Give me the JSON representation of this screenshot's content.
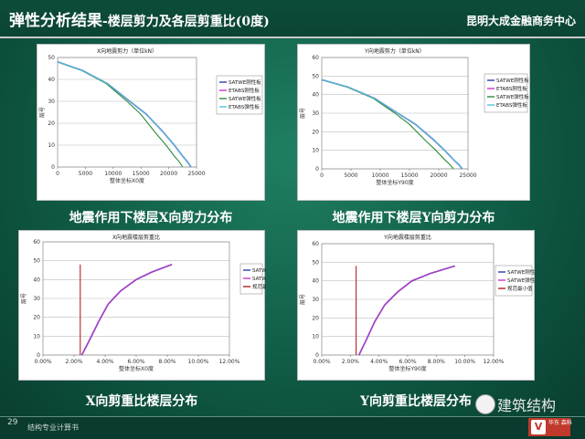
{
  "header": {
    "title": "弹性分析结果",
    "subtitle": "-楼层剪力及各层剪重比(0度)",
    "company": "昆明大成金融商务中心"
  },
  "captions": {
    "top_left": "地震作用下楼层X向剪力分布",
    "top_right": "地震作用下楼层Y向剪力分布",
    "bottom_left": "X向剪重比楼层分布",
    "bottom_right": "Y向剪重比楼层分布"
  },
  "footer": {
    "page": "29",
    "text": "结构专业计算书"
  },
  "watermark": {
    "text": "建筑结构",
    "logo_text": "华东 森科"
  },
  "colors": {
    "satwe_rigid": "#2b3bb0",
    "etabs_rigid": "#cc33cc",
    "satwe_elastic": "#2e8b3a",
    "etabs_elastic": "#4fc6e0",
    "limit": "#b22222"
  },
  "chart_data": [
    {
      "type": "line",
      "title": "X向地震剪力（单位kN）",
      "xlabel": "整体坐标X0度",
      "ylabel": "层号",
      "xlim": [
        0,
        25000
      ],
      "ylim": [
        0,
        50
      ],
      "xticks": [
        0,
        5000,
        10000,
        15000,
        20000,
        25000
      ],
      "yticks": [
        0,
        10,
        20,
        30,
        40,
        50
      ],
      "legend_position": "right",
      "series": [
        {
          "name": "SATWE刚性板",
          "color": "#2b3bb0",
          "x": [
            0,
            4500,
            9000,
            13000,
            16000,
            19000,
            21000,
            22500,
            23500,
            24000
          ],
          "y": [
            48,
            44,
            38,
            30,
            24,
            16,
            10,
            5,
            2,
            0
          ]
        },
        {
          "name": "ETABS刚性板",
          "color": "#cc33cc",
          "x": [
            0,
            4500,
            9000,
            13000,
            16000,
            19000,
            21000,
            22500,
            23500,
            24000
          ],
          "y": [
            48,
            44,
            38,
            30,
            24,
            16,
            10,
            5,
            2,
            0
          ]
        },
        {
          "name": "SATWE弹性板",
          "color": "#2e8b3a",
          "x": [
            0,
            4400,
            8800,
            12500,
            15000,
            17500,
            19500,
            21000,
            22000,
            22500
          ],
          "y": [
            48,
            44,
            38,
            30,
            24,
            16,
            10,
            5,
            2,
            0
          ]
        },
        {
          "name": "ETABS弹性板",
          "color": "#4fc6e0",
          "x": [
            0,
            4500,
            9000,
            13000,
            16000,
            19000,
            21000,
            22500,
            23500,
            24000
          ],
          "y": [
            48,
            44,
            38,
            30,
            24,
            16,
            10,
            5,
            2,
            0
          ]
        }
      ]
    },
    {
      "type": "line",
      "title": "Y向地震剪力（单位kN）",
      "xlabel": "整体坐标Y90度",
      "ylabel": "层号",
      "xlim": [
        0,
        25000
      ],
      "ylim": [
        0,
        60
      ],
      "xticks": [
        0,
        5000,
        10000,
        15000,
        20000,
        25000
      ],
      "yticks": [
        0,
        10,
        20,
        30,
        40,
        50,
        60
      ],
      "legend_position": "right",
      "series": [
        {
          "name": "SATWE刚性板",
          "color": "#2b3bb0",
          "x": [
            0,
            4500,
            9000,
            13000,
            16000,
            19000,
            21000,
            22500,
            23500,
            24000
          ],
          "y": [
            48,
            44,
            38,
            30,
            24,
            16,
            10,
            5,
            2,
            0
          ]
        },
        {
          "name": "ETABS刚性板",
          "color": "#cc33cc",
          "x": [
            0,
            4500,
            9000,
            13000,
            16000,
            19000,
            21000,
            22500,
            23500,
            24000
          ],
          "y": [
            48,
            44,
            38,
            30,
            24,
            16,
            10,
            5,
            2,
            0
          ]
        },
        {
          "name": "SATWE弹性板",
          "color": "#2e8b3a",
          "x": [
            0,
            4400,
            8800,
            12500,
            15000,
            17500,
            19500,
            21000,
            22000,
            22500
          ],
          "y": [
            48,
            44,
            38,
            30,
            24,
            16,
            10,
            5,
            2,
            0
          ]
        },
        {
          "name": "ETABS弹性板",
          "color": "#4fc6e0",
          "x": [
            0,
            4500,
            9000,
            13000,
            16000,
            19000,
            21000,
            22500,
            23500,
            24000
          ],
          "y": [
            48,
            44,
            38,
            30,
            24,
            16,
            10,
            5,
            2,
            0
          ]
        }
      ]
    },
    {
      "type": "line",
      "title": "X向地震楼层剪重比",
      "xlabel": "整体坐标X0度",
      "ylabel": "层号",
      "xlim": [
        0,
        12
      ],
      "ylim": [
        0,
        60
      ],
      "xticks": [
        0,
        2,
        4,
        6,
        8,
        10,
        12
      ],
      "xtick_labels": [
        "0.00%",
        "2.00%",
        "4.00%",
        "6.00%",
        "8.00%",
        "10.00%",
        "12.00%"
      ],
      "yticks": [
        0,
        10,
        20,
        30,
        40,
        50,
        60
      ],
      "legend_position": "right",
      "series": [
        {
          "name": "SATWE刚性板",
          "color": "#2b3bb0",
          "x": [
            2.5,
            3.0,
            3.6,
            4.2,
            5.0,
            6.0,
            7.0,
            8.3
          ],
          "y": [
            0,
            8,
            18,
            27,
            34,
            40,
            44,
            48
          ]
        },
        {
          "name": "SATWE弹性板",
          "color": "#cc33cc",
          "x": [
            2.5,
            3.0,
            3.6,
            4.2,
            5.0,
            6.0,
            7.0,
            8.3
          ],
          "y": [
            0,
            8,
            18,
            27,
            34,
            40,
            44,
            48
          ]
        },
        {
          "name": "规范最小值",
          "color": "#b22222",
          "x": [
            2.4,
            2.4
          ],
          "y": [
            0,
            48
          ]
        }
      ]
    },
    {
      "type": "line",
      "title": "Y向地震楼层剪重比",
      "xlabel": "整体坐标Y90度",
      "ylabel": "层号",
      "xlim": [
        0,
        12
      ],
      "ylim": [
        0,
        60
      ],
      "xticks": [
        0,
        2,
        4,
        6,
        8,
        10,
        12
      ],
      "xtick_labels": [
        "0.00%",
        "2.00%",
        "4.00%",
        "6.00%",
        "8.00%",
        "10.00%",
        "12.00%"
      ],
      "yticks": [
        0,
        10,
        20,
        30,
        40,
        50,
        60
      ],
      "legend_position": "right",
      "series": [
        {
          "name": "SATWE刚性板",
          "color": "#2b3bb0",
          "x": [
            2.6,
            3.1,
            3.7,
            4.4,
            5.3,
            6.3,
            7.6,
            9.3
          ],
          "y": [
            0,
            8,
            18,
            27,
            34,
            40,
            44,
            48
          ]
        },
        {
          "name": "SATWE弹性板",
          "color": "#cc33cc",
          "x": [
            2.6,
            3.1,
            3.7,
            4.4,
            5.3,
            6.3,
            7.6,
            9.3
          ],
          "y": [
            0,
            8,
            18,
            27,
            34,
            40,
            44,
            48
          ]
        },
        {
          "name": "规范最小值",
          "color": "#b22222",
          "x": [
            2.4,
            2.4
          ],
          "y": [
            0,
            48
          ]
        }
      ]
    }
  ]
}
